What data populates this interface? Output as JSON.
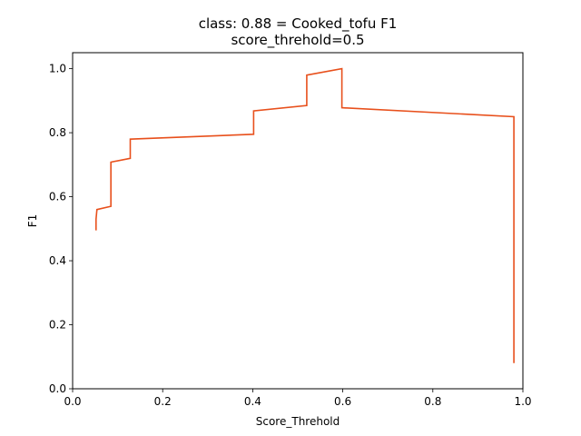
{
  "chart_data": {
    "type": "line",
    "title": "class: 0.88 = Cooked_tofu F1",
    "subtitle": "score_threhold=0.5",
    "xlabel": "Score_Threhold",
    "ylabel": "F1",
    "xlim": [
      0.0,
      1.0
    ],
    "ylim": [
      0.0,
      1.05
    ],
    "xticks": [
      "0.0",
      "0.2",
      "0.4",
      "0.6",
      "0.8",
      "1.0"
    ],
    "yticks": [
      "0.0",
      "0.2",
      "0.4",
      "0.6",
      "0.8",
      "1.0"
    ],
    "grid": false,
    "line_color": "#e8501c",
    "series": [
      {
        "x": [
          0.052,
          0.052,
          0.054,
          0.085,
          0.085,
          0.128,
          0.128,
          0.402,
          0.402,
          0.52,
          0.52,
          0.598,
          0.598,
          0.98,
          0.98
        ],
        "y": [
          0.495,
          0.53,
          0.56,
          0.57,
          0.708,
          0.72,
          0.78,
          0.795,
          0.868,
          0.885,
          0.98,
          1.0,
          0.878,
          0.85,
          0.08
        ]
      }
    ]
  }
}
